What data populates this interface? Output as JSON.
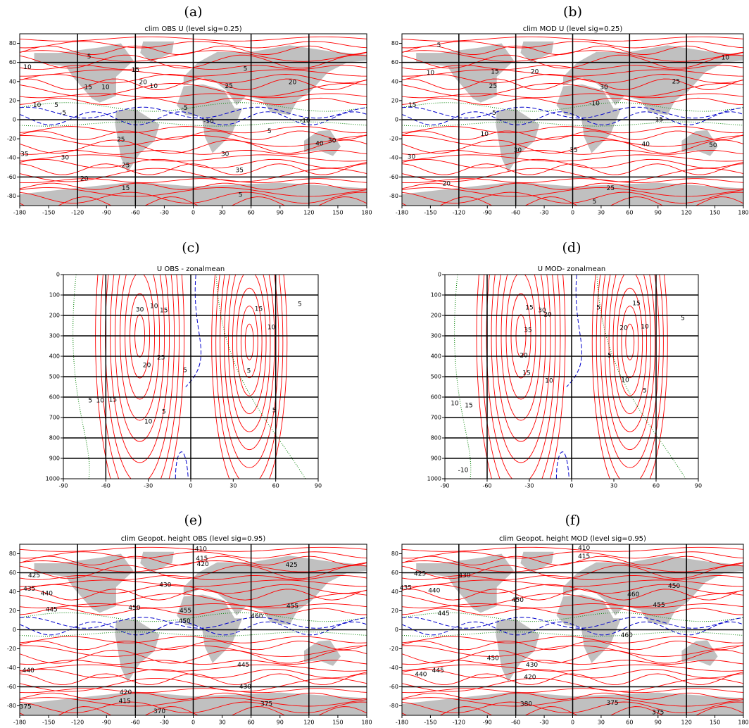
{
  "chart_data": [
    {
      "type": "contour",
      "panel_label": "(a)",
      "title": "clim OBS  U (level sig=0.25)",
      "land": true,
      "land_color": "#c0c0c0",
      "contour_colors": {
        "positive": "#ff0000",
        "negative": "#0000cc",
        "zero": "#008000"
      },
      "xlim": [
        -180,
        180
      ],
      "xticks": [
        -180,
        -150,
        -120,
        -90,
        -60,
        -30,
        0,
        30,
        60,
        90,
        120,
        150,
        180
      ],
      "ylim": [
        -90,
        90
      ],
      "yticks": [
        -80,
        -60,
        -40,
        -20,
        0,
        20,
        40,
        60,
        80
      ],
      "xgrid": [
        -120,
        -60,
        0,
        60,
        120
      ],
      "ygrid": [
        -60,
        0,
        60
      ],
      "contour_labels": [
        {
          "x": -108,
          "y": 66,
          "value": 5
        },
        {
          "x": -172,
          "y": 55,
          "value": 10
        },
        {
          "x": -60,
          "y": 52,
          "value": 15
        },
        {
          "x": -91,
          "y": 34,
          "value": 10
        },
        {
          "x": -109,
          "y": 34,
          "value": 15
        },
        {
          "x": -52,
          "y": 39,
          "value": 20
        },
        {
          "x": -41,
          "y": 35,
          "value": 10
        },
        {
          "x": 37,
          "y": 35,
          "value": 25
        },
        {
          "x": 103,
          "y": 39,
          "value": 20
        },
        {
          "x": 54,
          "y": 53,
          "value": 5
        },
        {
          "x": -162,
          "y": 15,
          "value": 10
        },
        {
          "x": -142,
          "y": 15,
          "value": 5
        },
        {
          "x": -135,
          "y": 7,
          "value": -5
        },
        {
          "x": -9,
          "y": 12,
          "value": -5
        },
        {
          "x": 16,
          "y": -2,
          "value": -10
        },
        {
          "x": 116,
          "y": -1,
          "value": -10
        },
        {
          "x": 79,
          "y": -12,
          "value": 5
        },
        {
          "x": -75,
          "y": -21,
          "value": 25
        },
        {
          "x": 33,
          "y": -36,
          "value": 30
        },
        {
          "x": -175,
          "y": -36,
          "value": 35
        },
        {
          "x": -133,
          "y": -40,
          "value": 30
        },
        {
          "x": 131,
          "y": -25,
          "value": 40
        },
        {
          "x": 144,
          "y": -22,
          "value": 30
        },
        {
          "x": -70,
          "y": -48,
          "value": 25
        },
        {
          "x": 48,
          "y": -53,
          "value": 35
        },
        {
          "x": -113,
          "y": -62,
          "value": 20
        },
        {
          "x": -70,
          "y": -72,
          "value": 15
        },
        {
          "x": 49,
          "y": -79,
          "value": 5
        }
      ]
    },
    {
      "type": "contour",
      "panel_label": "(b)",
      "title": "clim MOD  U (level sig=0.25)",
      "land": true,
      "land_color": "#c0c0c0",
      "contour_colors": {
        "positive": "#ff0000",
        "negative": "#0000cc",
        "zero": "#008000"
      },
      "xlim": [
        -180,
        180
      ],
      "xticks": [
        -180,
        -150,
        -120,
        -90,
        -60,
        -30,
        0,
        30,
        60,
        90,
        120,
        150,
        180
      ],
      "ylim": [
        -90,
        90
      ],
      "yticks": [
        -80,
        -60,
        -40,
        -20,
        0,
        20,
        40,
        60,
        80
      ],
      "xgrid": [
        -120,
        -60,
        0,
        60,
        120
      ],
      "ygrid": [
        -60,
        0,
        60
      ],
      "contour_labels": [
        {
          "x": -141,
          "y": 78,
          "value": 5
        },
        {
          "x": 161,
          "y": 65,
          "value": 10
        },
        {
          "x": -150,
          "y": 49,
          "value": 10
        },
        {
          "x": -82,
          "y": 50,
          "value": 15
        },
        {
          "x": -40,
          "y": 50,
          "value": 20
        },
        {
          "x": -84,
          "y": 35,
          "value": 25
        },
        {
          "x": 33,
          "y": 34,
          "value": 30
        },
        {
          "x": 109,
          "y": 40,
          "value": 25
        },
        {
          "x": -169,
          "y": 15,
          "value": 15
        },
        {
          "x": -84,
          "y": 7,
          "value": -5
        },
        {
          "x": 23,
          "y": 17,
          "value": -10
        },
        {
          "x": 90,
          "y": 0,
          "value": -15
        },
        {
          "x": -93,
          "y": -15,
          "value": 10
        },
        {
          "x": -58,
          "y": -32,
          "value": 30
        },
        {
          "x": 1,
          "y": -32,
          "value": 35
        },
        {
          "x": 77,
          "y": -26,
          "value": 40
        },
        {
          "x": 148,
          "y": -27,
          "value": 50
        },
        {
          "x": -170,
          "y": -39,
          "value": 30
        },
        {
          "x": -133,
          "y": -67,
          "value": 20
        },
        {
          "x": 40,
          "y": -72,
          "value": 25
        },
        {
          "x": 23,
          "y": -86,
          "value": 5
        }
      ]
    },
    {
      "type": "contour",
      "panel_label": "(c)",
      "title": "U OBS - zonalmean",
      "contour_colors": {
        "positive": "#ff0000",
        "negative": "#0000cc",
        "zero": "#008000"
      },
      "xlim": [
        -90,
        90
      ],
      "xticks": [
        -90,
        -60,
        -30,
        0,
        30,
        60,
        90
      ],
      "ylim": [
        1000,
        0
      ],
      "yticks": [
        0,
        100,
        200,
        300,
        400,
        500,
        600,
        700,
        800,
        900,
        1000
      ],
      "xgrid": [
        -60,
        0,
        60
      ],
      "ygrid": [
        100,
        200,
        300,
        400,
        500,
        600,
        700,
        800,
        900
      ],
      "contour_labels": [
        {
          "x": -26,
          "y": 155,
          "value": 10
        },
        {
          "x": -36,
          "y": 172,
          "value": 30
        },
        {
          "x": -19,
          "y": 176,
          "value": 15
        },
        {
          "x": -21,
          "y": 407,
          "value": 25
        },
        {
          "x": -31,
          "y": 445,
          "value": 20
        },
        {
          "x": -55,
          "y": 614,
          "value": 15
        },
        {
          "x": -64,
          "y": 617,
          "value": 10
        },
        {
          "x": -71,
          "y": 617,
          "value": 5
        },
        {
          "x": -30,
          "y": 721,
          "value": 10
        },
        {
          "x": -19,
          "y": 672,
          "value": 5
        },
        {
          "x": -4,
          "y": 469,
          "value": 5
        },
        {
          "x": 48,
          "y": 169,
          "value": 15
        },
        {
          "x": 57,
          "y": 259,
          "value": 10
        },
        {
          "x": 77,
          "y": 145,
          "value": 5
        },
        {
          "x": 41,
          "y": 472,
          "value": 5
        },
        {
          "x": 59,
          "y": 666,
          "value": 5
        }
      ]
    },
    {
      "type": "contour",
      "panel_label": "(d)",
      "title": "U MOD- zonalmean",
      "contour_colors": {
        "positive": "#ff0000",
        "negative": "#0000cc",
        "zero": "#008000"
      },
      "xlim": [
        -90,
        90
      ],
      "xticks": [
        -90,
        -60,
        -30,
        0,
        30,
        60,
        90
      ],
      "ylim": [
        1000,
        0
      ],
      "yticks": [
        0,
        100,
        200,
        300,
        400,
        500,
        600,
        700,
        800,
        900,
        1000
      ],
      "xgrid": [
        -60,
        0,
        60
      ],
      "ygrid": [
        100,
        200,
        300,
        400,
        500,
        600,
        700,
        800,
        900
      ],
      "contour_labels": [
        {
          "x": -30,
          "y": 162,
          "value": 15
        },
        {
          "x": -21,
          "y": 176,
          "value": 30
        },
        {
          "x": -17,
          "y": 197,
          "value": 20
        },
        {
          "x": -31,
          "y": 272,
          "value": 35
        },
        {
          "x": -34,
          "y": 397,
          "value": 20
        },
        {
          "x": 19,
          "y": 162,
          "value": 5
        },
        {
          "x": 46,
          "y": 141,
          "value": 15
        },
        {
          "x": 37,
          "y": 262,
          "value": 20
        },
        {
          "x": 27,
          "y": 397,
          "value": 5
        },
        {
          "x": 52,
          "y": 255,
          "value": 10
        },
        {
          "x": 79,
          "y": 214,
          "value": 5
        },
        {
          "x": -32,
          "y": 483,
          "value": 15
        },
        {
          "x": -16,
          "y": 521,
          "value": 10
        },
        {
          "x": 38,
          "y": 517,
          "value": 10
        },
        {
          "x": 52,
          "y": 569,
          "value": 5
        },
        {
          "x": -83,
          "y": 631,
          "value": 10
        },
        {
          "x": -73,
          "y": 641,
          "value": 15
        },
        {
          "x": -77,
          "y": 959,
          "value": -10
        }
      ]
    },
    {
      "type": "contour",
      "panel_label": "(e)",
      "title": "clim Geopot. height OBS (level sig=0.95)",
      "land": true,
      "land_color": "#c0c0c0",
      "contour_colors": {
        "positive": "#ff0000",
        "negative": "#0000cc",
        "zero": "#008000"
      },
      "xlim": [
        -180,
        180
      ],
      "xticks": [
        -180,
        -150,
        -120,
        -90,
        -60,
        -30,
        0,
        30,
        60,
        90,
        120,
        150,
        180
      ],
      "ylim": [
        -90,
        90
      ],
      "yticks": [
        -80,
        -60,
        -40,
        -20,
        0,
        20,
        40,
        60,
        80
      ],
      "xgrid": [
        -120,
        -60,
        0,
        60,
        120
      ],
      "ygrid": [
        -60,
        0,
        60
      ],
      "contour_labels": [
        {
          "x": 8,
          "y": 85,
          "value": 410
        },
        {
          "x": 9,
          "y": 75,
          "value": 415
        },
        {
          "x": 10,
          "y": 69,
          "value": 420
        },
        {
          "x": -165,
          "y": 57,
          "value": 425
        },
        {
          "x": -170,
          "y": 43,
          "value": 435
        },
        {
          "x": -152,
          "y": 38,
          "value": 440
        },
        {
          "x": -147,
          "y": 21,
          "value": 445
        },
        {
          "x": -61,
          "y": 23,
          "value": 450
        },
        {
          "x": -8,
          "y": 20,
          "value": 455
        },
        {
          "x": 66,
          "y": 14,
          "value": 460
        },
        {
          "x": -9,
          "y": 9,
          "value": 450
        },
        {
          "x": 52,
          "y": -37,
          "value": 445
        },
        {
          "x": -171,
          "y": -43,
          "value": 440
        },
        {
          "x": 54,
          "y": -60,
          "value": 430
        },
        {
          "x": -70,
          "y": -66,
          "value": 420
        },
        {
          "x": -71,
          "y": -75,
          "value": 415
        },
        {
          "x": -174,
          "y": -81,
          "value": 375
        },
        {
          "x": -35,
          "y": -86,
          "value": 370
        },
        {
          "x": 76,
          "y": -78,
          "value": 375
        },
        {
          "x": 103,
          "y": 25,
          "value": 455
        },
        {
          "x": -29,
          "y": 47,
          "value": 430
        },
        {
          "x": 102,
          "y": 68,
          "value": 425
        }
      ]
    },
    {
      "type": "contour",
      "panel_label": "(f)",
      "title": "clim Geopot. height MOD (level sig=0.95)",
      "land": true,
      "land_color": "#c0c0c0",
      "contour_colors": {
        "positive": "#ff0000",
        "negative": "#0000cc",
        "zero": "#008000"
      },
      "xlim": [
        -180,
        180
      ],
      "xticks": [
        -180,
        -150,
        -120,
        -90,
        -60,
        -30,
        0,
        30,
        60,
        90,
        120,
        150,
        180
      ],
      "ylim": [
        -90,
        90
      ],
      "yticks": [
        -80,
        -60,
        -40,
        -20,
        0,
        20,
        40,
        60,
        80
      ],
      "xgrid": [
        -120,
        -60,
        0,
        60,
        120
      ],
      "ygrid": [
        -60,
        0,
        60
      ],
      "contour_labels": [
        {
          "x": 12,
          "y": 86,
          "value": 410
        },
        {
          "x": 12,
          "y": 77,
          "value": 415
        },
        {
          "x": -161,
          "y": 59,
          "value": 425
        },
        {
          "x": -176,
          "y": 44,
          "value": 435
        },
        {
          "x": -146,
          "y": 41,
          "value": 440
        },
        {
          "x": -136,
          "y": 17,
          "value": 445
        },
        {
          "x": -114,
          "y": 57,
          "value": 430
        },
        {
          "x": -58,
          "y": 31,
          "value": 450
        },
        {
          "x": 64,
          "y": 37,
          "value": 460
        },
        {
          "x": 91,
          "y": 26,
          "value": 455
        },
        {
          "x": 107,
          "y": 46,
          "value": 450
        },
        {
          "x": -84,
          "y": -30,
          "value": 450
        },
        {
          "x": -160,
          "y": -47,
          "value": 440
        },
        {
          "x": -142,
          "y": -43,
          "value": 445
        },
        {
          "x": -43,
          "y": -37,
          "value": 430
        },
        {
          "x": -45,
          "y": -50,
          "value": 420
        },
        {
          "x": -49,
          "y": -78,
          "value": 380
        },
        {
          "x": 42,
          "y": -77,
          "value": 375
        },
        {
          "x": 90,
          "y": -87,
          "value": 375
        },
        {
          "x": 57,
          "y": -6,
          "value": 460
        }
      ]
    }
  ]
}
